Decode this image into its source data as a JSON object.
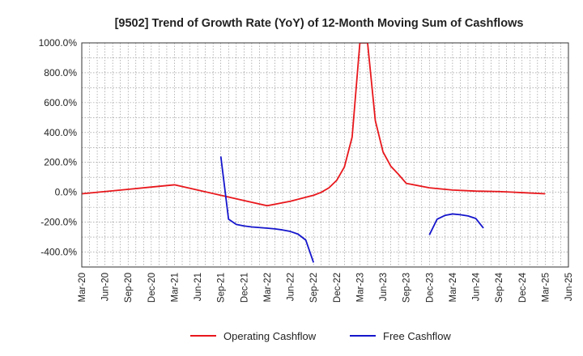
{
  "chart_data": {
    "type": "line",
    "title": "[9502]  Trend of Growth Rate (YoY) of 12-Month Moving Sum of Cashflows",
    "xlabel": "",
    "ylabel": "",
    "ylim": [
      -500,
      1000
    ],
    "yticks": [
      1000,
      800,
      600,
      400,
      200,
      0,
      -200,
      -400
    ],
    "ytick_labels": [
      "1000.0%",
      "800.0%",
      "600.0%",
      "400.0%",
      "200.0%",
      "0.0%",
      "-200.0%",
      "-400.0%"
    ],
    "x_start": "Mar-20",
    "x_months": 63,
    "xtick_labels": [
      "Mar-20",
      "Jun-20",
      "Sep-20",
      "Dec-20",
      "Mar-21",
      "Jun-21",
      "Sep-21",
      "Dec-21",
      "Mar-22",
      "Jun-22",
      "Sep-22",
      "Dec-22",
      "Mar-23",
      "Jun-23",
      "Sep-23",
      "Dec-23",
      "Mar-24",
      "Jun-24",
      "Sep-24",
      "Dec-24",
      "Mar-25",
      "Jun-25"
    ],
    "grid": true,
    "legend_position": "bottom",
    "series": [
      {
        "name": "Operating Cashflow",
        "color": "#e8171c",
        "points": [
          [
            "Mar-20",
            -10
          ],
          [
            "Jun-20",
            5
          ],
          [
            "Sep-20",
            20
          ],
          [
            "Dec-20",
            35
          ],
          [
            "Mar-21",
            50
          ],
          [
            "Jun-21",
            15
          ],
          [
            "Sep-21",
            -20
          ],
          [
            "Dec-21",
            -55
          ],
          [
            "Mar-22",
            -90
          ],
          [
            "Jun-22",
            -60
          ],
          [
            "Sep-22",
            -20
          ],
          [
            "Oct-22",
            0
          ],
          [
            "Nov-22",
            30
          ],
          [
            "Dec-22",
            80
          ],
          [
            "Jan-23",
            170
          ],
          [
            "Feb-23",
            370
          ],
          [
            "Mar-23",
            1000
          ],
          [
            "Apr-23",
            1000
          ],
          [
            "May-23",
            480
          ],
          [
            "Jun-23",
            270
          ],
          [
            "Jul-23",
            175
          ],
          [
            "Aug-23",
            120
          ],
          [
            "Sep-23",
            60
          ],
          [
            "Dec-23",
            30
          ],
          [
            "Mar-24",
            15
          ],
          [
            "Jun-24",
            8
          ],
          [
            "Sep-24",
            5
          ],
          [
            "Dec-24",
            -2
          ],
          [
            "Mar-25",
            -10
          ]
        ]
      },
      {
        "name": "Free Cashflow",
        "color": "#1515cc",
        "segments": [
          [
            [
              "Sep-21",
              240
            ],
            [
              "Oct-21",
              -180
            ],
            [
              "Nov-21",
              -215
            ],
            [
              "Dec-21",
              -225
            ],
            [
              "Jan-22",
              -232
            ],
            [
              "Feb-22",
              -236
            ],
            [
              "Mar-22",
              -240
            ],
            [
              "Apr-22",
              -245
            ],
            [
              "May-22",
              -252
            ],
            [
              "Jun-22",
              -262
            ],
            [
              "Jul-22",
              -280
            ],
            [
              "Aug-22",
              -320
            ],
            [
              "Sep-22",
              -470
            ]
          ],
          [
            [
              "Dec-23",
              -285
            ],
            [
              "Jan-24",
              -180
            ],
            [
              "Feb-24",
              -155
            ],
            [
              "Mar-24",
              -145
            ],
            [
              "Apr-24",
              -150
            ],
            [
              "May-24",
              -158
            ],
            [
              "Jun-24",
              -175
            ],
            [
              "Jul-24",
              -240
            ]
          ]
        ]
      }
    ]
  }
}
